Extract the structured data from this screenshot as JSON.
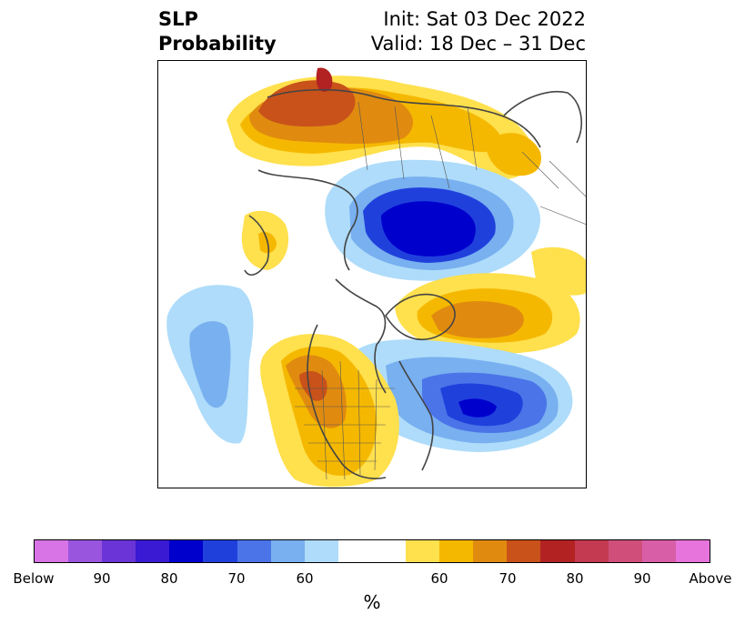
{
  "title": {
    "left_line1": "SLP",
    "left_line2": "Probability",
    "right_line1": "Init: Sat 03 Dec 2022",
    "right_line2": "Valid: 18 Dec – 31 Dec"
  },
  "map": {
    "projection": "north-polar-stereographic",
    "description_regions": [
      {
        "name": "northern-asia-high",
        "category": "above",
        "max_level": "80"
      },
      {
        "name": "arctic-low",
        "category": "below",
        "max_level": "80"
      },
      {
        "name": "greenland-high",
        "category": "above",
        "max_level": "70"
      },
      {
        "name": "north-atlantic-low",
        "category": "below",
        "max_level": "70"
      },
      {
        "name": "western-north-america-high",
        "category": "above",
        "max_level": "70"
      },
      {
        "name": "north-pacific-low",
        "category": "below",
        "max_level": "60"
      }
    ]
  },
  "colorbar": {
    "colors": [
      "#d874e6",
      "#9a55df",
      "#6a34d6",
      "#3a1ad2",
      "#0000cd",
      "#2040dc",
      "#4b74e8",
      "#78b0f0",
      "#aedcfa",
      "#ffffff",
      "#ffe04d",
      "#f5b800",
      "#e08b10",
      "#c8521a",
      "#b22222",
      "#c43a50",
      "#cf4f7a",
      "#d95ea8",
      "#e674dc"
    ],
    "tick_labels": [
      "Below",
      "90",
      "80",
      "70",
      "60",
      "60",
      "70",
      "80",
      "90",
      "Above"
    ],
    "label": "%"
  }
}
